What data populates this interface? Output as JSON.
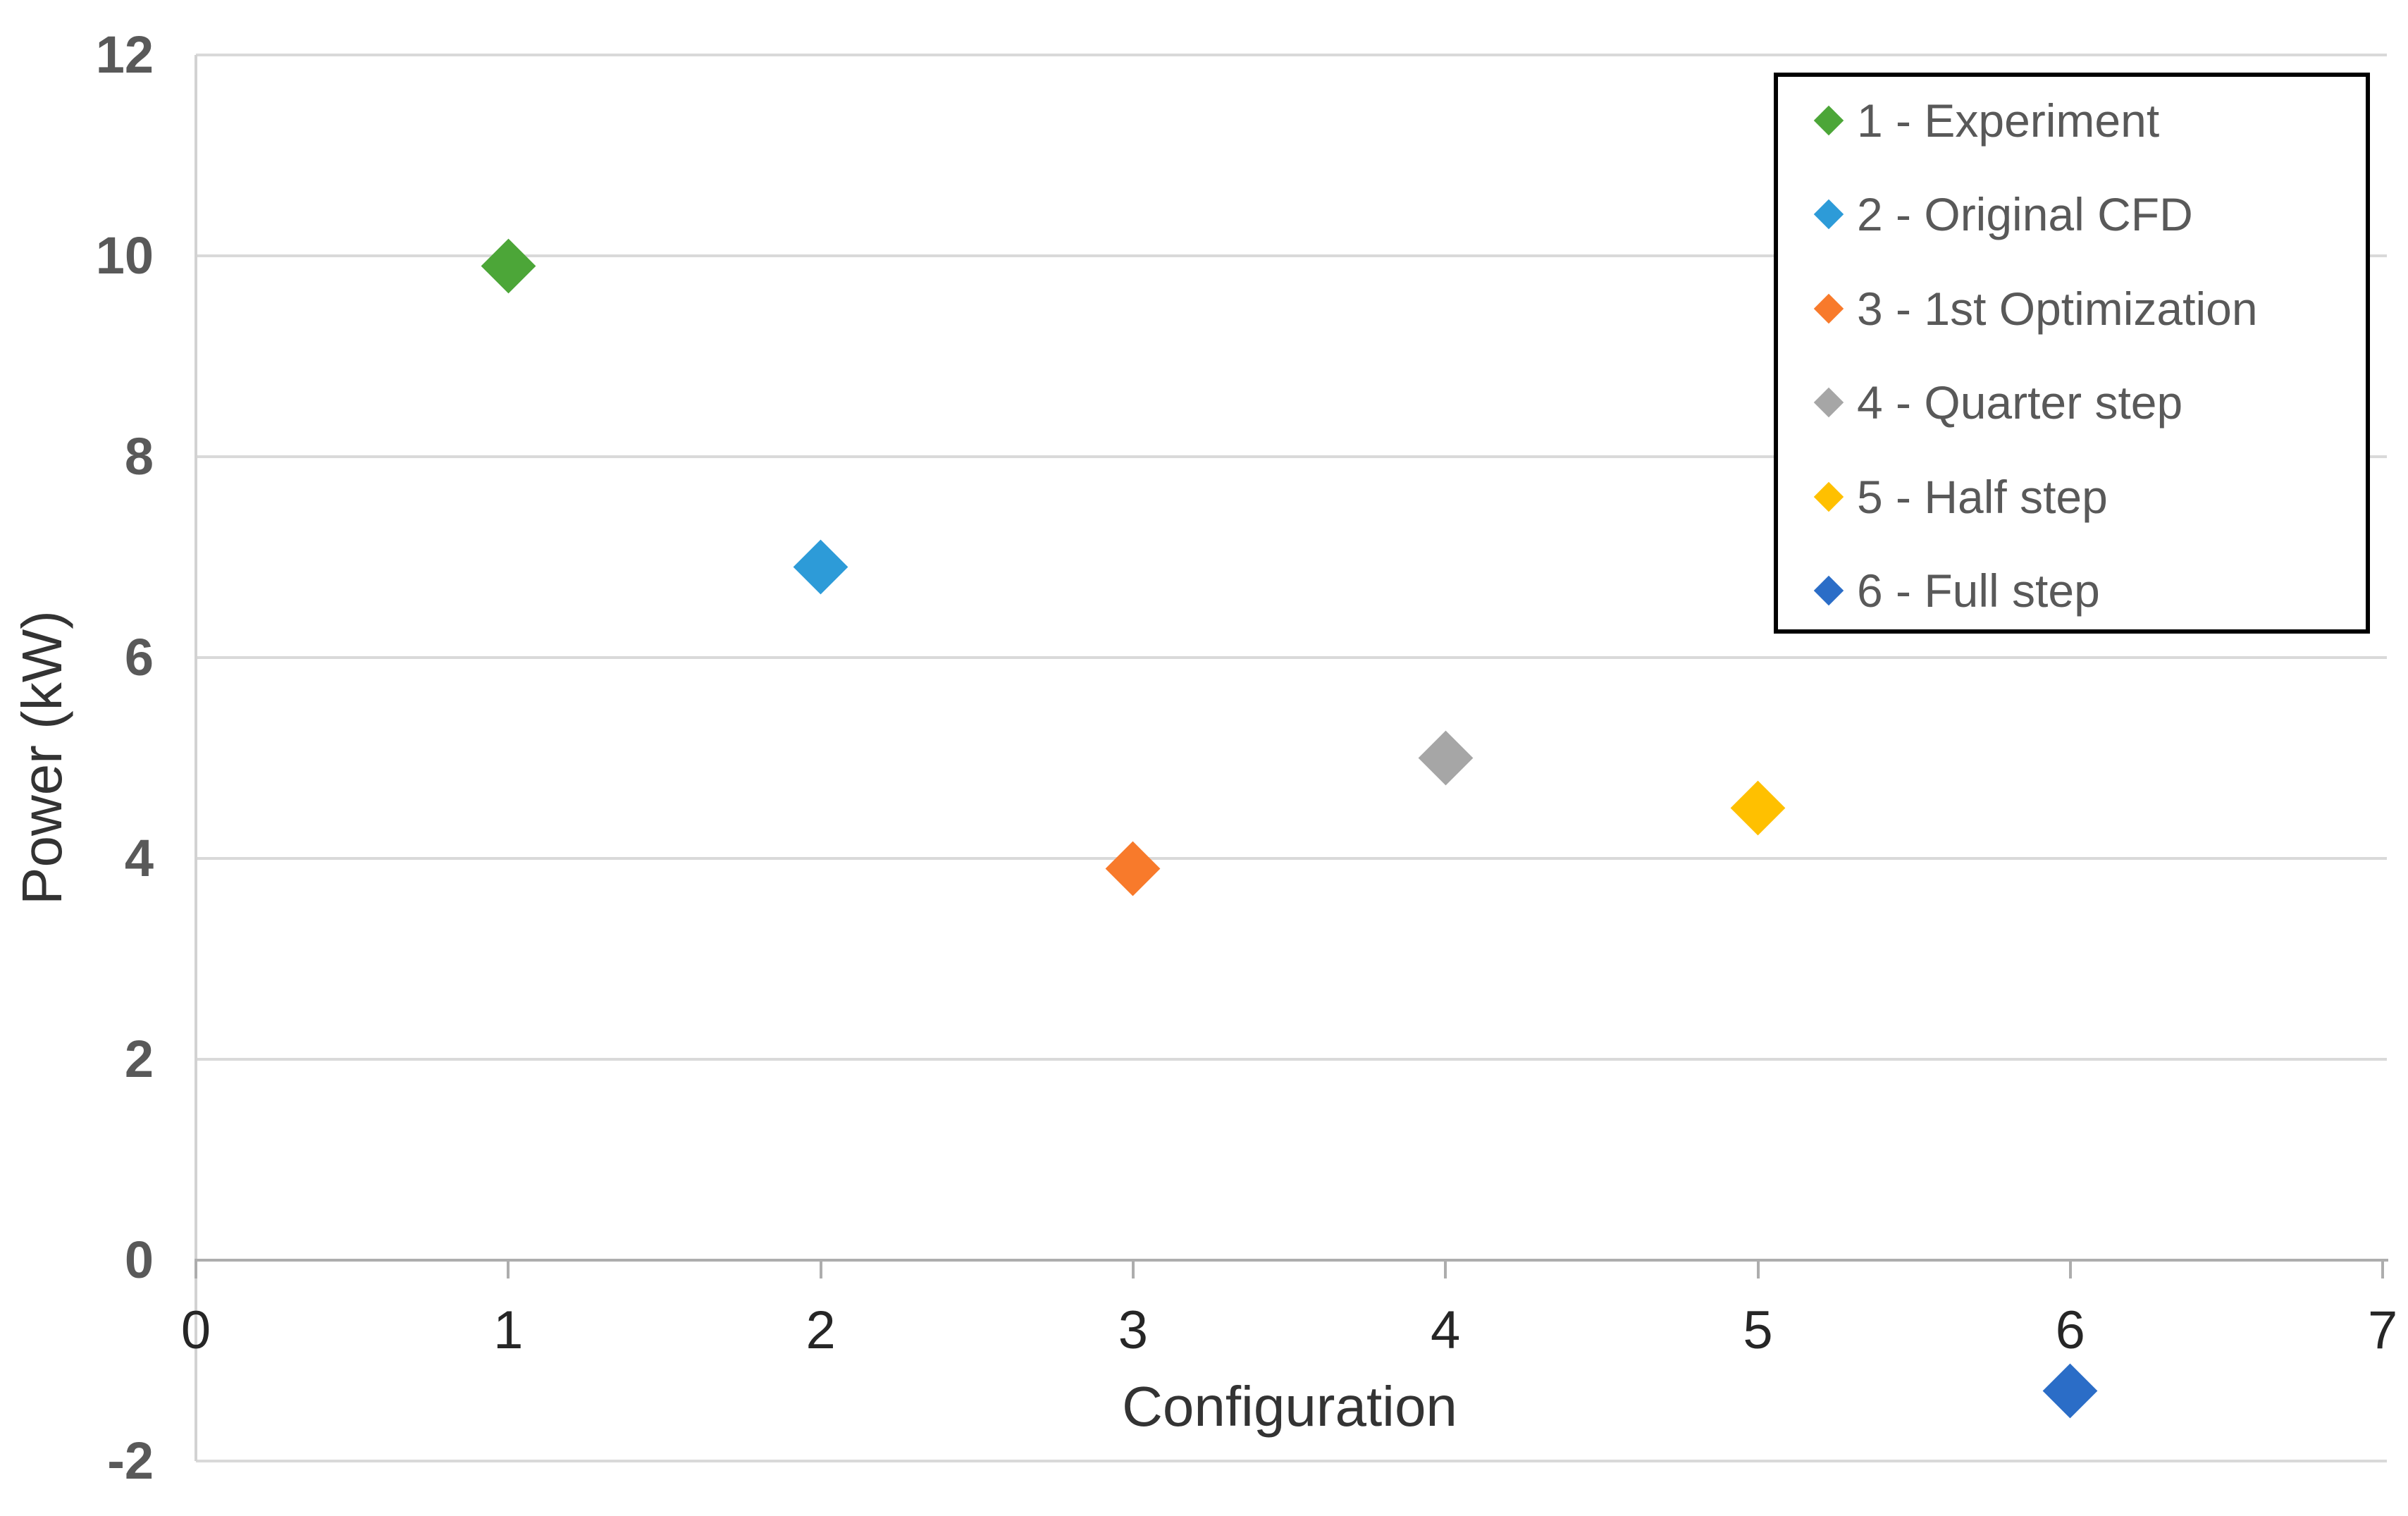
{
  "chart_data": {
    "type": "scatter",
    "title": "",
    "xlabel": "Configuration",
    "ylabel": "Power (kW)",
    "xlim": [
      0,
      7
    ],
    "ylim": [
      -2,
      12
    ],
    "xticks": [
      0,
      1,
      2,
      3,
      4,
      5,
      6,
      7
    ],
    "yticks": [
      12,
      10,
      8,
      6,
      4,
      2,
      0,
      -2
    ],
    "grid": "horizontal",
    "legend_position": "top-right",
    "marker": "diamond",
    "series": [
      {
        "name": "1 - Experiment",
        "color": "#4CA638",
        "points": [
          {
            "x": 1,
            "y": 9.9
          }
        ]
      },
      {
        "name": "2 - Original CFD",
        "color": "#2D9BD8",
        "points": [
          {
            "x": 2,
            "y": 6.9
          }
        ]
      },
      {
        "name": "3 - 1st Optimization",
        "color": "#F87A2B",
        "points": [
          {
            "x": 3,
            "y": 3.9
          }
        ]
      },
      {
        "name": "4 - Quarter step",
        "color": "#A6A6A6",
        "points": [
          {
            "x": 4,
            "y": 5.0
          }
        ]
      },
      {
        "name": "5 - Half step",
        "color": "#FFC000",
        "points": [
          {
            "x": 5,
            "y": 4.5
          }
        ]
      },
      {
        "name": "6 - Full step",
        "color": "#2B6DC7",
        "points": [
          {
            "x": 6,
            "y": -1.3
          }
        ]
      }
    ]
  },
  "colors": {
    "background": "#FFFFFF",
    "gridline": "#D9D9D9",
    "axis_line": "#ADADAD",
    "plot_border": "#D2D2D2",
    "y_tick_text": "#595959",
    "x_tick_text": "#262626",
    "axis_title_text": "#333333",
    "legend_border": "#000000",
    "legend_text": "#595959"
  }
}
